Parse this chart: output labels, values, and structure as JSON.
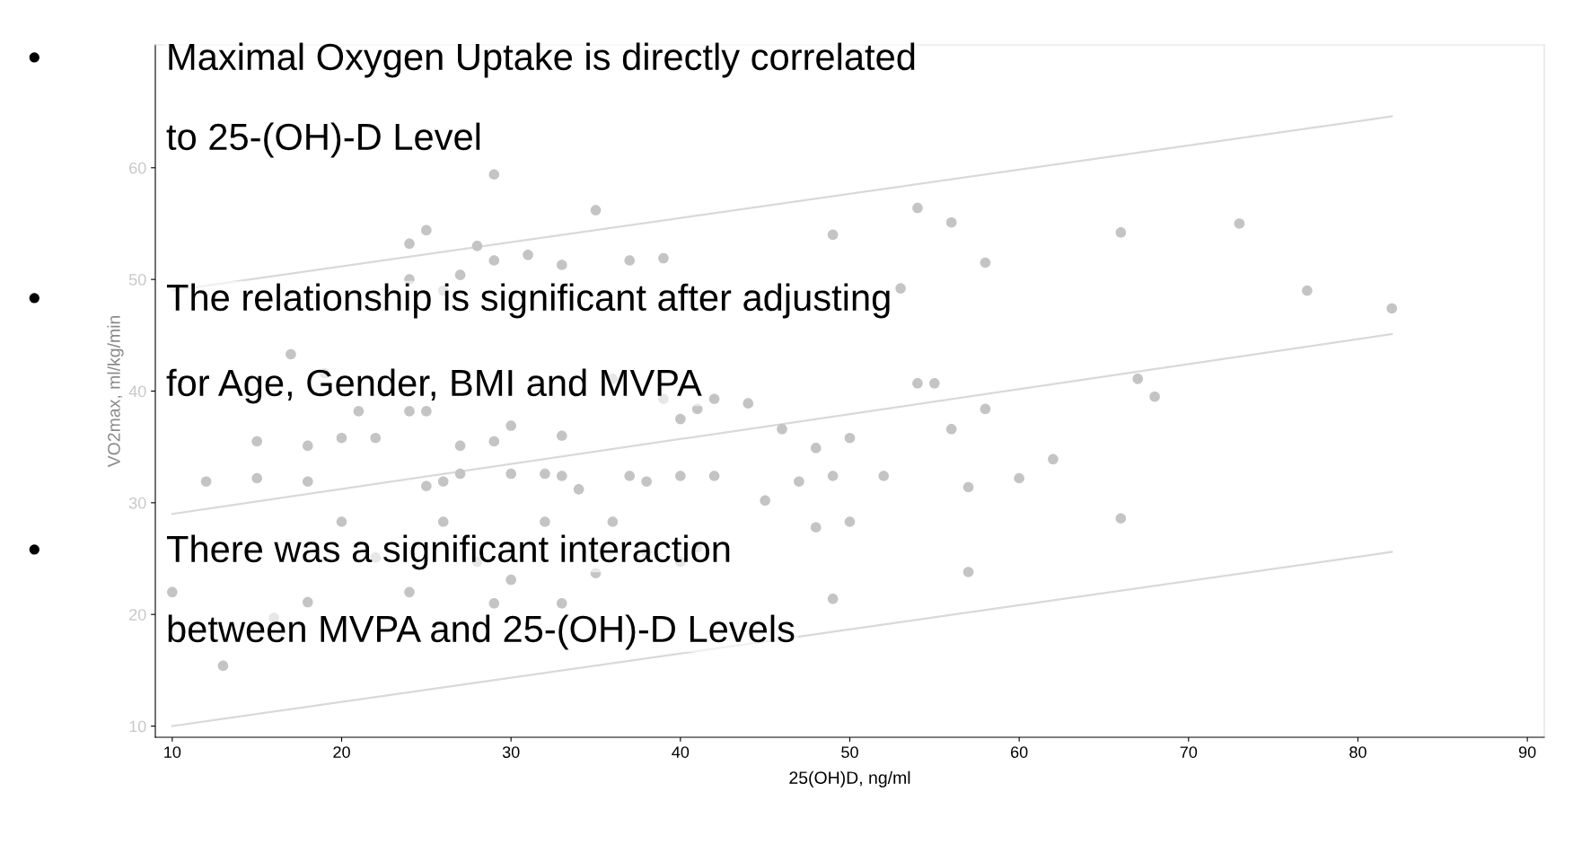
{
  "chart_data": {
    "type": "scatter",
    "xlabel": "25(OH)D, ng/ml",
    "ylabel": "VO2max, ml/kg/min",
    "xlim": [
      9,
      91
    ],
    "ylim": [
      9,
      71
    ],
    "xticks": [
      10,
      20,
      30,
      40,
      50,
      60,
      70,
      80,
      90
    ],
    "yticks": [
      10,
      20,
      30,
      40,
      50,
      60
    ],
    "grid": false,
    "legend": false,
    "series": [
      {
        "marker": "circle",
        "color": "#c4c4c4",
        "x": [
          25,
          49,
          56,
          66,
          73,
          29,
          35,
          54,
          24,
          28,
          29,
          31,
          33,
          37,
          39,
          58,
          53,
          77,
          82,
          27,
          24,
          26,
          17,
          19,
          21,
          15,
          18,
          20,
          22,
          24,
          25,
          27,
          29,
          30,
          33,
          36,
          39,
          40,
          41,
          42,
          44,
          46,
          48,
          50,
          54,
          55,
          56,
          58,
          62,
          67,
          68,
          12,
          15,
          18,
          25,
          26,
          27,
          30,
          32,
          33,
          34,
          37,
          38,
          40,
          42,
          47,
          49,
          52,
          57,
          60,
          10,
          13,
          16,
          18,
          20,
          22,
          24,
          26,
          28,
          29,
          30,
          32,
          33,
          35,
          36,
          38,
          40,
          41,
          45,
          48,
          49,
          50,
          57,
          66
        ],
        "values": [
          54.4,
          54.0,
          55.1,
          54.2,
          55.0,
          59.4,
          56.2,
          56.4,
          53.2,
          53.0,
          51.7,
          52.2,
          51.3,
          51.7,
          51.9,
          51.5,
          49.2,
          49.0,
          47.4,
          50.4,
          50.0,
          49.0,
          43.3,
          41.6,
          38.2,
          35.5,
          35.1,
          35.8,
          35.8,
          38.2,
          38.2,
          35.1,
          35.5,
          36.9,
          36.0,
          41.1,
          39.3,
          37.5,
          38.4,
          39.3,
          38.9,
          36.6,
          34.9,
          35.8,
          40.7,
          40.7,
          36.6,
          38.4,
          33.9,
          41.1,
          39.5,
          31.9,
          32.2,
          31.9,
          31.5,
          31.9,
          32.6,
          32.6,
          32.6,
          32.4,
          31.2,
          32.4,
          31.9,
          32.4,
          32.4,
          31.9,
          32.4,
          32.4,
          31.4,
          32.2,
          22.0,
          15.4,
          19.7,
          21.1,
          28.3,
          25.1,
          22.0,
          28.3,
          24.7,
          21.0,
          23.1,
          28.3,
          21.0,
          23.7,
          28.3,
          25.6,
          24.7,
          26.0,
          30.2,
          27.8,
          21.4,
          28.3,
          23.8,
          28.6
        ]
      },
      {
        "type": "line",
        "color": "#d9d9d9",
        "x": [
          10,
          82
        ],
        "values": [
          10,
          25.6
        ]
      },
      {
        "type": "line",
        "color": "#d9d9d9",
        "x": [
          10,
          82
        ],
        "values": [
          29,
          45.1
        ]
      },
      {
        "type": "line",
        "color": "#d9d9d9",
        "x": [
          10,
          82
        ],
        "values": [
          49,
          64.6
        ]
      }
    ],
    "annotations": [
      "•",
      "Maximal Oxygen Uptake is directly correlated",
      "to 25-(OH)-D Level",
      "•",
      "The relationship is significant after adjusting",
      "for Age, Gender, BMI and MVPA",
      "•",
      "There was a significant interaction",
      "between MVPA and 25-(OH)-D Levels"
    ]
  }
}
